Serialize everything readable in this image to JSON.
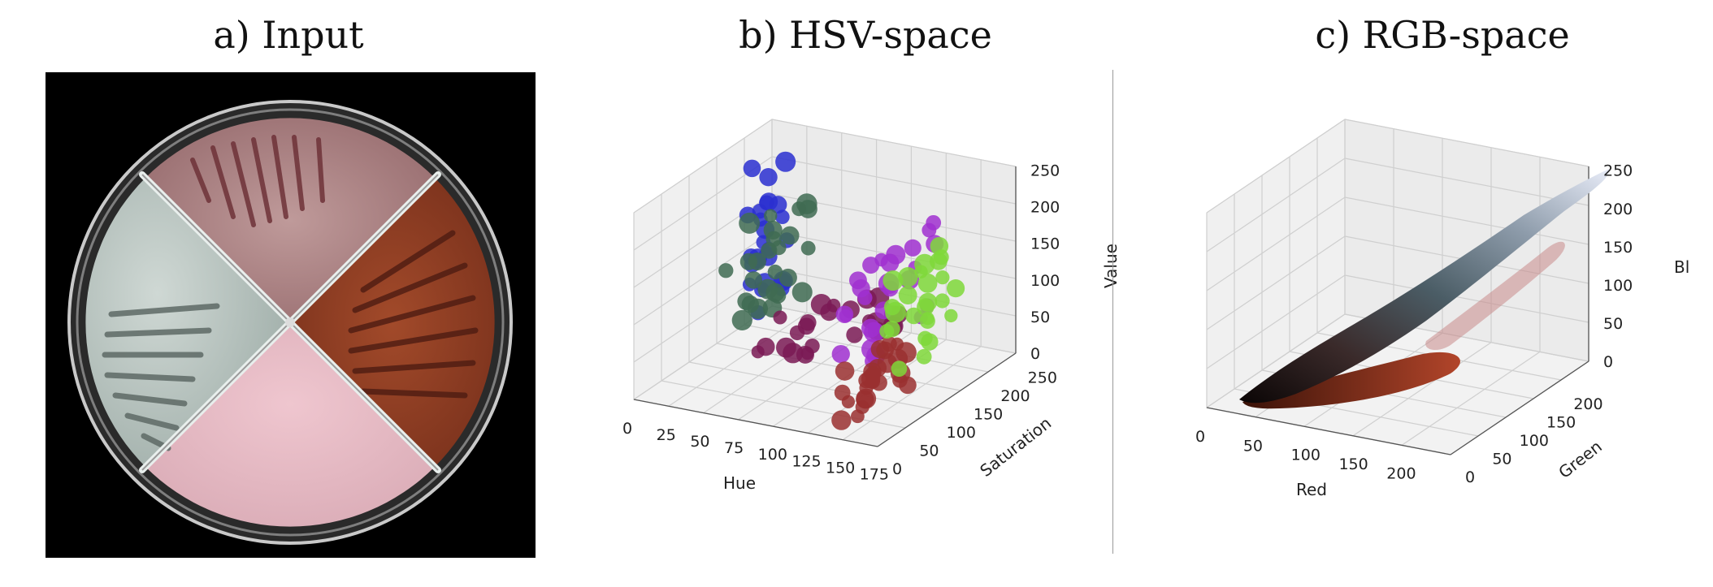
{
  "panels": {
    "a": {
      "title": "a) Input"
    },
    "b": {
      "title": "b) HSV-space"
    },
    "c": {
      "title": "c) RGB-space"
    }
  },
  "chart_data": [
    {
      "type": "scatter",
      "title": "b) HSV-space",
      "axes": {
        "x": {
          "label": "Hue",
          "ticks": [
            "0",
            "25",
            "50",
            "75",
            "100",
            "125",
            "150",
            "175"
          ],
          "lim": [
            0,
            180
          ]
        },
        "y": {
          "label": "Saturation",
          "ticks": [
            "0",
            "50",
            "100",
            "150",
            "200",
            "250"
          ],
          "lim": [
            0,
            255
          ]
        },
        "z": {
          "label": "Value",
          "ticks": [
            "0",
            "50",
            "100",
            "150",
            "200",
            "250"
          ],
          "lim": [
            0,
            255
          ]
        }
      },
      "grid": true,
      "clusters": [
        {
          "x": [
            0,
            15
          ],
          "y": [
            180,
            255
          ],
          "z": [
            20,
            230
          ],
          "color": "#2a2fd0"
        },
        {
          "x": [
            10,
            35
          ],
          "y": [
            140,
            255
          ],
          "z": [
            30,
            160
          ],
          "color": "#3f6b52"
        },
        {
          "x": [
            40,
            120
          ],
          "y": [
            100,
            220
          ],
          "z": [
            20,
            80
          ],
          "color": "#7a1a55"
        },
        {
          "x": [
            125,
            150
          ],
          "y": [
            60,
            200
          ],
          "z": [
            60,
            210
          ],
          "color": "#a030d0"
        },
        {
          "x": [
            140,
            165
          ],
          "y": [
            20,
            120
          ],
          "z": [
            10,
            90
          ],
          "color": "#9a3030"
        },
        {
          "x": [
            150,
            175
          ],
          "y": [
            60,
            180
          ],
          "z": [
            40,
            190
          ],
          "color": "#7fd83a"
        }
      ]
    },
    {
      "type": "scatter",
      "title": "c) RGB-space",
      "axes": {
        "x": {
          "label": "Red",
          "ticks": [
            "0",
            "50",
            "100",
            "150",
            "200"
          ],
          "lim": [
            0,
            255
          ]
        },
        "y": {
          "label": "Green",
          "ticks": [
            "0",
            "50",
            "100",
            "150",
            "200"
          ],
          "lim": [
            0,
            255
          ]
        },
        "z": {
          "label": "Bl",
          "ticks": [
            "0",
            "50",
            "100",
            "150",
            "200",
            "250"
          ],
          "lim": [
            0,
            255
          ]
        }
      },
      "grid": true,
      "clusters": [
        {
          "x": [
            0,
            255
          ],
          "y": [
            0,
            255
          ],
          "z": [
            0,
            255
          ],
          "color": "#6a7f8a"
        }
      ]
    }
  ]
}
